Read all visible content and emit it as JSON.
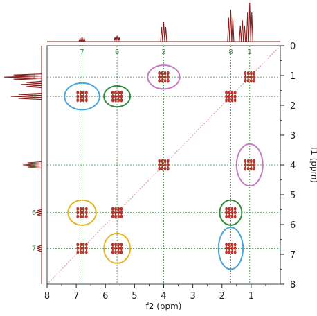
{
  "chart_data": {
    "type": "scatter",
    "title": "",
    "xlabel": "f2 (ppm)",
    "ylabel": "f1 (ppm)",
    "xlim": [
      8,
      0
    ],
    "ylim": [
      0,
      8
    ],
    "x_ticks": [
      "8",
      "7",
      "6",
      "5",
      "4",
      "3",
      "2",
      "1"
    ],
    "y_ticks": [
      "0",
      "1",
      "2",
      "3",
      "4",
      "5",
      "6",
      "7",
      "8"
    ],
    "grid": false,
    "guide_lines": {
      "x": [
        {
          "label": "7",
          "ppm": 6.8
        },
        {
          "label": "6",
          "ppm": 5.6
        },
        {
          "label": "2",
          "ppm": 4.0
        },
        {
          "label": "8",
          "ppm": 1.7
        },
        {
          "label": "1",
          "ppm": 1.05
        }
      ],
      "y": [
        {
          "label": "1",
          "ppm": 1.05
        },
        {
          "label": "8",
          "ppm": 1.7
        },
        {
          "label": "2",
          "ppm": 4.0
        },
        {
          "label": "6",
          "ppm": 5.6
        },
        {
          "label": "7",
          "ppm": 6.8
        }
      ]
    },
    "cross_peaks": [
      {
        "x": 1.05,
        "y": 1.05,
        "kind": "diagonal"
      },
      {
        "x": 1.7,
        "y": 1.7,
        "kind": "diagonal"
      },
      {
        "x": 4.0,
        "y": 4.0,
        "kind": "diagonal"
      },
      {
        "x": 5.6,
        "y": 5.6,
        "kind": "diagonal"
      },
      {
        "x": 6.8,
        "y": 6.8,
        "kind": "diagonal"
      },
      {
        "x": 4.0,
        "y": 1.05,
        "kind": "cross"
      },
      {
        "x": 1.05,
        "y": 4.0,
        "kind": "cross"
      },
      {
        "x": 6.8,
        "y": 1.7,
        "kind": "cross"
      },
      {
        "x": 1.7,
        "y": 6.8,
        "kind": "cross"
      },
      {
        "x": 5.6,
        "y": 1.7,
        "kind": "cross"
      },
      {
        "x": 1.7,
        "y": 5.6,
        "kind": "cross"
      },
      {
        "x": 6.8,
        "y": 5.6,
        "kind": "cross"
      },
      {
        "x": 5.6,
        "y": 6.8,
        "kind": "cross"
      }
    ],
    "highlights": [
      {
        "x": 4.0,
        "y": 1.05,
        "rx": 0.55,
        "ry": 0.4,
        "color": "#c77dc0"
      },
      {
        "x": 1.05,
        "y": 4.0,
        "rx": 0.45,
        "ry": 0.7,
        "color": "#c77dc0"
      },
      {
        "x": 6.8,
        "y": 1.7,
        "rx": 0.6,
        "ry": 0.45,
        "color": "#4aa6d8"
      },
      {
        "x": 1.7,
        "y": 6.8,
        "rx": 0.42,
        "ry": 0.7,
        "color": "#4aa6d8"
      },
      {
        "x": 5.6,
        "y": 1.7,
        "rx": 0.45,
        "ry": 0.35,
        "color": "#2e8b3e"
      },
      {
        "x": 1.7,
        "y": 5.6,
        "rx": 0.38,
        "ry": 0.42,
        "color": "#2e8b3e"
      },
      {
        "x": 6.8,
        "y": 5.6,
        "rx": 0.48,
        "ry": 0.42,
        "color": "#e6b422"
      },
      {
        "x": 5.6,
        "y": 6.8,
        "rx": 0.45,
        "ry": 0.5,
        "color": "#e6b422"
      }
    ],
    "projection_1d": [
      {
        "ppm": 1.05,
        "intensity": 1.0
      },
      {
        "ppm": 1.3,
        "intensity": 0.55
      },
      {
        "ppm": 1.7,
        "intensity": 0.82
      },
      {
        "ppm": 4.0,
        "intensity": 0.5
      },
      {
        "ppm": 5.6,
        "intensity": 0.15
      },
      {
        "ppm": 6.8,
        "intensity": 0.12
      }
    ],
    "colors": {
      "peaks": "#c0392b",
      "projection": "#8b1a1a",
      "guides": "#2e8b3e",
      "axis": "#222222"
    }
  }
}
